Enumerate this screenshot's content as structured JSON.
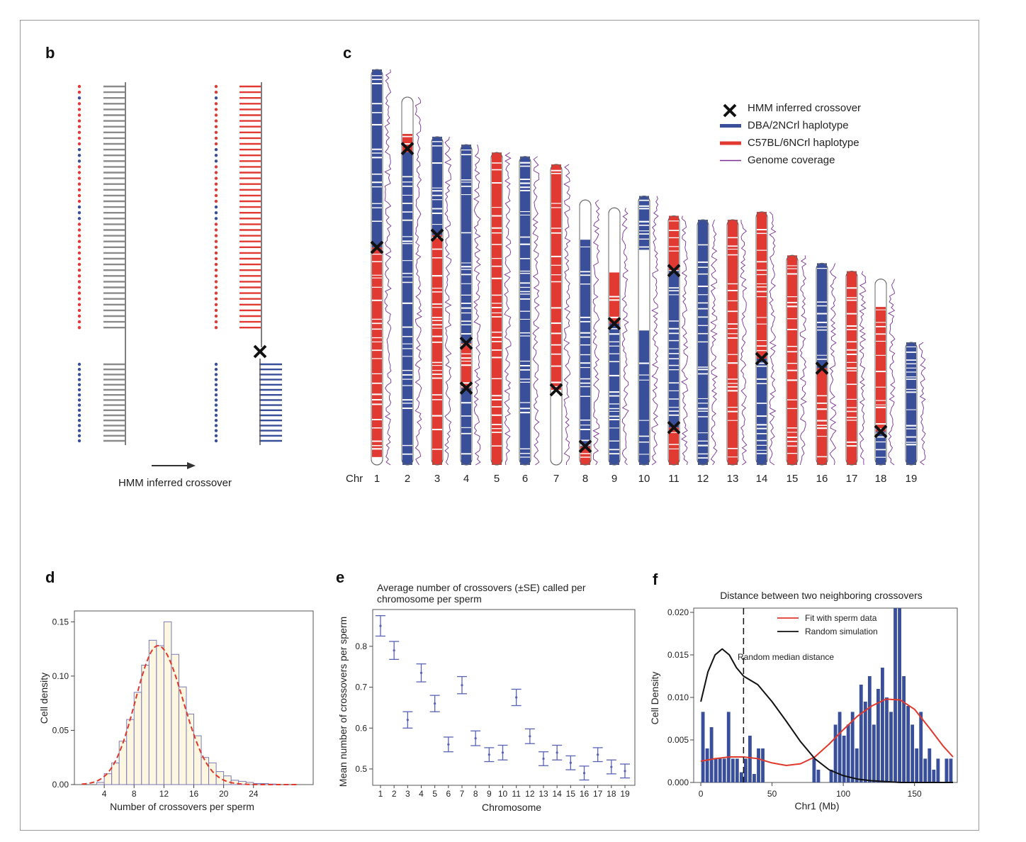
{
  "panel_b": {
    "label": "b",
    "caption": "HMM inferred crossover",
    "dots_top": [
      "r",
      "r",
      "b",
      "r",
      "r",
      "r",
      "r",
      "r",
      "r",
      "r",
      "r",
      "b",
      "b",
      "b",
      "r",
      "r",
      "r",
      "r",
      "r",
      "r",
      "r",
      "b",
      "b",
      "b",
      "r",
      "r",
      "r",
      "r",
      "r",
      "r",
      "r",
      "r",
      "r",
      "r",
      "r",
      "r",
      "r",
      "r",
      "r",
      "r",
      "r",
      "r",
      "r"
    ],
    "dots_bottom_count": 16,
    "colors": {
      "red": "#e03a32",
      "blue": "#3a4f9a",
      "gray": "#8a8a8a",
      "dark": "#111111"
    }
  },
  "panel_c": {
    "label": "c",
    "axis_prefix": "Chr",
    "chromosomes": [
      {
        "label": "1",
        "rel_len": 1.0,
        "segments": [
          [
            "b",
            0,
            0.45
          ],
          [
            "r",
            0.45,
            0.98
          ],
          [
            "w",
            0.98,
            1.0
          ]
        ],
        "crossovers": [
          0.45
        ]
      },
      {
        "label": "2",
        "rel_len": 0.93,
        "segments": [
          [
            "w",
            0,
            0.1
          ],
          [
            "r",
            0.1,
            0.15
          ],
          [
            "b",
            0.15,
            1.0
          ]
        ],
        "crossovers": [
          0.14
        ]
      },
      {
        "label": "3",
        "rel_len": 0.83,
        "segments": [
          [
            "b",
            0,
            0.3
          ],
          [
            "r",
            0.3,
            1.0
          ]
        ],
        "crossovers": [
          0.3
        ]
      },
      {
        "label": "4",
        "rel_len": 0.81,
        "segments": [
          [
            "b",
            0,
            0.62
          ],
          [
            "r",
            0.62,
            0.76
          ],
          [
            "b",
            0.76,
            1.0
          ]
        ],
        "crossovers": [
          0.62,
          0.76
        ]
      },
      {
        "label": "5",
        "rel_len": 0.79,
        "segments": [
          [
            "r",
            0,
            1.0
          ]
        ],
        "crossovers": []
      },
      {
        "label": "6",
        "rel_len": 0.78,
        "segments": [
          [
            "b",
            0,
            1.0
          ]
        ],
        "crossovers": []
      },
      {
        "label": "7",
        "rel_len": 0.76,
        "segments": [
          [
            "r",
            0,
            0.75
          ],
          [
            "w",
            0.75,
            1.0
          ]
        ],
        "crossovers": [
          0.75
        ]
      },
      {
        "label": "8",
        "rel_len": 0.67,
        "segments": [
          [
            "w",
            0,
            0.15
          ],
          [
            "b",
            0.15,
            0.93
          ],
          [
            "r",
            0.93,
            1.0
          ]
        ],
        "crossovers": [
          0.93
        ]
      },
      {
        "label": "9",
        "rel_len": 0.65,
        "segments": [
          [
            "w",
            0,
            0.25
          ],
          [
            "r",
            0.25,
            0.45
          ],
          [
            "b",
            0.45,
            1.0
          ]
        ],
        "crossovers": [
          0.45
        ]
      },
      {
        "label": "10",
        "rel_len": 0.68,
        "segments": [
          [
            "b",
            0,
            0.2
          ],
          [
            "w",
            0.2,
            0.5
          ],
          [
            "b",
            0.5,
            1.0
          ]
        ],
        "crossovers": []
      },
      {
        "label": "11",
        "rel_len": 0.63,
        "segments": [
          [
            "r",
            0,
            0.22
          ],
          [
            "b",
            0.22,
            0.85
          ],
          [
            "r",
            0.85,
            1.0
          ]
        ],
        "crossovers": [
          0.22,
          0.85
        ]
      },
      {
        "label": "12",
        "rel_len": 0.62,
        "segments": [
          [
            "b",
            0,
            1.0
          ]
        ],
        "crossovers": []
      },
      {
        "label": "13",
        "rel_len": 0.62,
        "segments": [
          [
            "r",
            0,
            1.0
          ]
        ],
        "crossovers": []
      },
      {
        "label": "14",
        "rel_len": 0.64,
        "segments": [
          [
            "r",
            0,
            0.58
          ],
          [
            "b",
            0.58,
            1.0
          ]
        ],
        "crossovers": [
          0.58
        ]
      },
      {
        "label": "15",
        "rel_len": 0.53,
        "segments": [
          [
            "r",
            0,
            1.0
          ]
        ],
        "crossovers": []
      },
      {
        "label": "16",
        "rel_len": 0.51,
        "segments": [
          [
            "b",
            0,
            0.52
          ],
          [
            "r",
            0.52,
            1.0
          ]
        ],
        "crossovers": [
          0.52
        ]
      },
      {
        "label": "17",
        "rel_len": 0.49,
        "segments": [
          [
            "r",
            0,
            1.0
          ]
        ],
        "crossovers": []
      },
      {
        "label": "18",
        "rel_len": 0.47,
        "segments": [
          [
            "w",
            0,
            0.15
          ],
          [
            "r",
            0.15,
            0.82
          ],
          [
            "b",
            0.82,
            1.0
          ]
        ],
        "crossovers": [
          0.82
        ]
      },
      {
        "label": "19",
        "rel_len": 0.31,
        "segments": [
          [
            "b",
            0,
            1.0
          ]
        ],
        "crossovers": []
      }
    ],
    "legend": [
      {
        "kind": "cross",
        "label": "HMM inferred crossover",
        "color": "#111111"
      },
      {
        "kind": "line",
        "label": "DBA/2NCrl haplotype",
        "color": "#3a4f9a"
      },
      {
        "kind": "line",
        "label": "C57BL/6NCrl haplotype",
        "color": "#e03a32"
      },
      {
        "kind": "thin",
        "label": "Genome coverage",
        "color": "#7a2f95"
      }
    ]
  },
  "chart_data": [
    {
      "panel": "d",
      "type": "bar",
      "title": "",
      "xlabel": "Number of crossovers per sperm",
      "ylabel": "Cell density",
      "xlim": [
        0,
        32
      ],
      "ylim": [
        0,
        0.16
      ],
      "xticks": [
        "4",
        "8",
        "12",
        "16",
        "20",
        "24"
      ],
      "yticks": [
        "0.00",
        "0.05",
        "0.10",
        "0.15"
      ],
      "bin_width": 1,
      "bins_start": [
        3,
        4,
        5,
        6,
        7,
        8,
        9,
        10,
        11,
        12,
        13,
        14,
        15,
        16,
        17,
        18,
        19,
        20,
        21,
        22,
        23,
        24,
        25,
        26
      ],
      "values": [
        0.002,
        0.01,
        0.02,
        0.04,
        0.06,
        0.085,
        0.11,
        0.133,
        0.128,
        0.15,
        0.12,
        0.09,
        0.065,
        0.045,
        0.025,
        0.02,
        0.012,
        0.008,
        0.004,
        0.003,
        0.002,
        0.001,
        0.001,
        0.0005
      ],
      "fit_curve": {
        "style": "dashed",
        "color": "#e0392b",
        "mean": 11.2,
        "sd": 3.1,
        "peak": 0.128
      },
      "bar_fill": "#fdf7e1",
      "bar_edge": "#7a7ab5"
    },
    {
      "panel": "e",
      "type": "scatter",
      "title": "Average number of crossovers (±SE) called per chromosome per sperm",
      "xlabel": "Chromosome",
      "ylabel": "Mean number of crossovers per sperm",
      "categories": [
        "1",
        "2",
        "3",
        "4",
        "5",
        "6",
        "7",
        "8",
        "9",
        "10",
        "11",
        "12",
        "13",
        "14",
        "15",
        "16",
        "17",
        "18",
        "19"
      ],
      "values": [
        0.85,
        0.79,
        0.62,
        0.735,
        0.66,
        0.56,
        0.705,
        0.575,
        0.535,
        0.54,
        0.675,
        0.58,
        0.525,
        0.54,
        0.515,
        0.49,
        0.535,
        0.505,
        0.495
      ],
      "se": [
        0.025,
        0.022,
        0.02,
        0.022,
        0.02,
        0.018,
        0.021,
        0.018,
        0.017,
        0.018,
        0.02,
        0.018,
        0.017,
        0.018,
        0.017,
        0.017,
        0.017,
        0.017,
        0.017
      ],
      "ylim": [
        0.46,
        0.89
      ],
      "yticks": [
        "0.5",
        "0.6",
        "0.7",
        "0.8"
      ],
      "color": "#5a62b5"
    },
    {
      "panel": "f",
      "type": "bar",
      "title": "Distance between two neighboring crossovers",
      "xlabel": "Chr1 (Mb)",
      "ylabel": "Cell Density",
      "xlim": [
        -5,
        180
      ],
      "ylim": [
        0,
        0.0205
      ],
      "xticks": [
        "0",
        "50",
        "100",
        "150"
      ],
      "yticks": [
        "0.000",
        "0.005",
        "0.010",
        "0.015",
        "0.020"
      ],
      "bin_width": 3,
      "bins_start": [
        0,
        3,
        6,
        9,
        12,
        15,
        18,
        21,
        24,
        27,
        30,
        33,
        36,
        39,
        42,
        45,
        48,
        51,
        54,
        57,
        60,
        63,
        66,
        69,
        72,
        75,
        78,
        81,
        84,
        87,
        90,
        93,
        96,
        99,
        102,
        105,
        108,
        111,
        114,
        117,
        120,
        123,
        126,
        129,
        132,
        135,
        138,
        141,
        144,
        147,
        150,
        153,
        156,
        159,
        162,
        165,
        168,
        171,
        174
      ],
      "values": [
        0.0083,
        0.004,
        0.0065,
        0.0028,
        0.0028,
        0.0028,
        0.0083,
        0.0028,
        0.0028,
        0.0012,
        0.0028,
        0.0055,
        0.001,
        0.004,
        0.004,
        0.0,
        0.0,
        0.0,
        0.0,
        0.0,
        0.0,
        0.0,
        0.0,
        0.0,
        0.0,
        0.0,
        0.0028,
        0.0015,
        0.0,
        0.0,
        0.0015,
        0.0068,
        0.0083,
        0.0055,
        0.0068,
        0.0083,
        0.004,
        0.0115,
        0.0095,
        0.0125,
        0.0068,
        0.011,
        0.0135,
        0.01,
        0.0083,
        0.0205,
        0.0205,
        0.0125,
        0.009,
        0.0068,
        0.004,
        0.0083,
        0.0028,
        0.004,
        0.0015,
        0.0028,
        0.0,
        0.0028,
        0.0028
      ],
      "series": [
        {
          "name": "Fit with sperm data",
          "color": "#e0392b",
          "x": [
            0,
            10,
            20,
            30,
            40,
            50,
            60,
            70,
            80,
            90,
            100,
            110,
            120,
            130,
            140,
            150,
            160,
            170,
            177
          ],
          "y": [
            0.0025,
            0.0028,
            0.003,
            0.003,
            0.0028,
            0.0023,
            0.002,
            0.0022,
            0.003,
            0.0045,
            0.0062,
            0.0078,
            0.009,
            0.0098,
            0.0097,
            0.0086,
            0.0065,
            0.0043,
            0.003
          ]
        },
        {
          "name": "Random simulation",
          "color": "#111111",
          "x": [
            0,
            5,
            10,
            15,
            20,
            25,
            30,
            40,
            50,
            60,
            70,
            80,
            90,
            100,
            110,
            120,
            130,
            140,
            150,
            160,
            170,
            177
          ],
          "y": [
            0.0095,
            0.013,
            0.015,
            0.0157,
            0.015,
            0.0135,
            0.0125,
            0.0115,
            0.0095,
            0.0072,
            0.0048,
            0.0028,
            0.0015,
            0.0008,
            0.0004,
            0.0002,
            0.0001,
            0.0,
            0.0,
            0.0,
            0.0,
            0.0
          ]
        }
      ],
      "vline": {
        "x": 30,
        "label": "Random median distance",
        "style": "dashed"
      },
      "bar_fill": "#3a4f9a"
    }
  ]
}
